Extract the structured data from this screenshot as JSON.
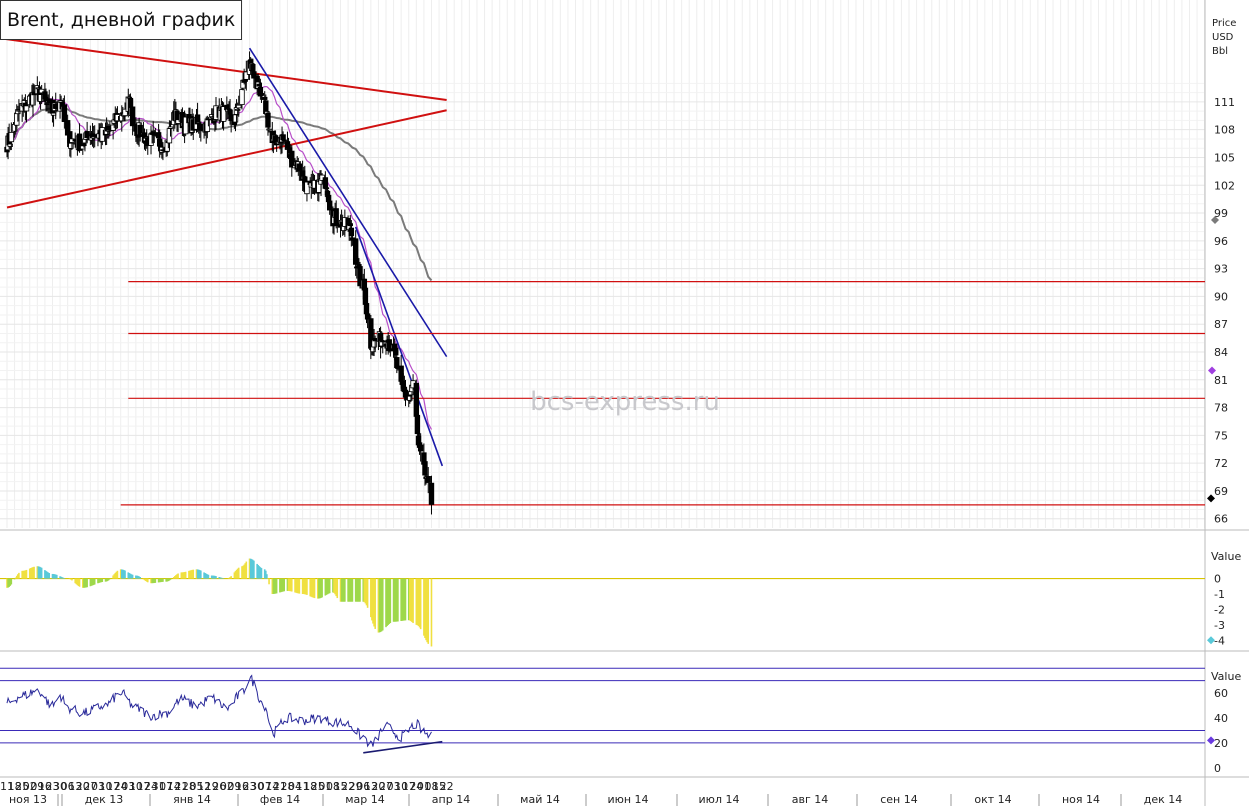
{
  "title": "Brent, дневной график",
  "watermark": "bcs-express.ru",
  "price_axis_unit": [
    "Price",
    "USD",
    "Bbl"
  ],
  "oscillator_axis_title": "Value",
  "rsi_axis_title": "Value",
  "colors": {
    "up": "#ffffff",
    "down": "#000000",
    "ma_short": "#b84fc9",
    "ma_long": "#7a7a7a",
    "trend_red": "#d01010",
    "trend_blue": "#1a1aa8",
    "hist_pos": "#f0e040",
    "hist_neg": "#9ed84a",
    "hist_edge_pos": "#59c9d9",
    "rsi_line": "#2a2a9a",
    "rsi_levels": "#3a2ab8",
    "zero_line": "#d8c400"
  },
  "chart_data": [
    {
      "type": "candlestick",
      "title": "Brent, дневной график",
      "ylabel": "Price USD Bbl",
      "ylim": [
        65,
        122
      ],
      "yticks": [
        66,
        69,
        72,
        75,
        78,
        81,
        84,
        87,
        90,
        93,
        96,
        99,
        102,
        105,
        108,
        111
      ],
      "x_day_labels": [
        "11",
        "18",
        "25",
        "02",
        "09",
        "16",
        "23",
        "30",
        "06",
        "13",
        "20",
        "27",
        "03",
        "10",
        "17",
        "24",
        "03",
        "10",
        "17",
        "24",
        "31",
        "07",
        "14",
        "21",
        "28",
        "05",
        "12",
        "19",
        "26",
        "02",
        "09",
        "16",
        "23",
        "30",
        "07",
        "14",
        "21",
        "28",
        "04",
        "11",
        "18",
        "25",
        "01",
        "08",
        "15",
        "22",
        "29",
        "06",
        "13",
        "20",
        "27",
        "03",
        "10",
        "17",
        "24",
        "01",
        "08",
        "15",
        "22"
      ],
      "x_month_labels": [
        "ноя 13",
        "дек 13",
        "янв 14",
        "фев 14",
        "мар 14",
        "апр 14",
        "май 14",
        "июн 14",
        "июл 14",
        "авг 14",
        "сен 14",
        "окт 14",
        "ноя 14",
        "дек 14"
      ],
      "close_waypoints": [
        [
          "2013-11-11",
          106.5
        ],
        [
          "2013-11-25",
          110.5
        ],
        [
          "2013-12-09",
          112.0
        ],
        [
          "2013-12-23",
          110.0
        ],
        [
          "2013-12-30",
          111.5
        ],
        [
          "2014-01-06",
          107.0
        ],
        [
          "2014-01-20",
          106.5
        ],
        [
          "2014-01-27",
          107.5
        ],
        [
          "2014-02-10",
          107.5
        ],
        [
          "2014-02-24",
          109.5
        ],
        [
          "2014-03-03",
          111.0
        ],
        [
          "2014-03-10",
          108.0
        ],
        [
          "2014-03-24",
          106.8
        ],
        [
          "2014-04-07",
          106.5
        ],
        [
          "2014-04-14",
          109.5
        ],
        [
          "2014-04-28",
          108.5
        ],
        [
          "2014-05-12",
          108.5
        ],
        [
          "2014-05-26",
          110.0
        ],
        [
          "2014-06-09",
          109.0
        ],
        [
          "2014-06-16",
          112.5
        ],
        [
          "2014-06-23",
          115.0
        ],
        [
          "2014-07-07",
          110.5
        ],
        [
          "2014-07-14",
          106.5
        ],
        [
          "2014-07-21",
          107.2
        ],
        [
          "2014-08-04",
          104.5
        ],
        [
          "2014-08-18",
          101.5
        ],
        [
          "2014-09-01",
          102.5
        ],
        [
          "2014-09-08",
          98.5
        ],
        [
          "2014-09-22",
          97.5
        ],
        [
          "2014-10-06",
          91.0
        ],
        [
          "2014-10-13",
          85.0
        ],
        [
          "2014-10-27",
          85.5
        ],
        [
          "2014-11-03",
          84.0
        ],
        [
          "2014-11-10",
          80.0
        ],
        [
          "2014-11-17",
          79.0
        ],
        [
          "2014-11-21",
          80.5
        ],
        [
          "2014-11-27",
          73.0
        ],
        [
          "2014-12-01",
          71.0
        ],
        [
          "2014-12-08",
          67.8
        ]
      ],
      "overlays": [
        {
          "name": "MA short",
          "color": "ma_short"
        },
        {
          "name": "MA long",
          "color": "ma_long",
          "last_value": 96.9
        },
        {
          "kind": "trendline",
          "color": "trend_red",
          "from": [
            "2013-10-28",
            118.0
          ],
          "to": [
            "2014-12-22",
            111.2
          ]
        },
        {
          "kind": "trendline",
          "color": "trend_red",
          "from": [
            "2013-11-11",
            99.6
          ],
          "to": [
            "2014-12-22",
            110.1
          ]
        },
        {
          "kind": "trendline",
          "color": "trend_blue",
          "from": [
            "2014-06-23",
            116.8
          ],
          "to": [
            "2014-12-22",
            83.5
          ]
        },
        {
          "kind": "trendline",
          "color": "trend_blue",
          "from": [
            "2014-09-29",
            97.5
          ],
          "to": [
            "2014-12-18",
            71.7
          ]
        },
        {
          "kind": "level",
          "color": "trend_red",
          "value": 91.6,
          "from": "2014-03-03"
        },
        {
          "kind": "level",
          "color": "trend_red",
          "value": 86.0,
          "from": "2014-03-03"
        },
        {
          "kind": "level",
          "color": "trend_red",
          "value": 79.0,
          "from": "2014-03-03"
        },
        {
          "kind": "level",
          "color": "trend_red",
          "value": 67.5,
          "from": "2014-02-24"
        }
      ],
      "last_marker_value": 68.2
    },
    {
      "type": "histogram",
      "ylabel": "Value",
      "ylim": [
        -4.5,
        2.5
      ],
      "yticks": [
        0,
        -1,
        -2,
        -3,
        -4
      ],
      "values_waypoints": [
        [
          "2013-11-11",
          -0.6
        ],
        [
          "2013-11-25",
          0.5
        ],
        [
          "2013-12-09",
          0.8
        ],
        [
          "2013-12-23",
          0.3
        ],
        [
          "2014-01-06",
          0.0
        ],
        [
          "2014-01-20",
          -0.6
        ],
        [
          "2014-02-10",
          -0.2
        ],
        [
          "2014-02-24",
          0.6
        ],
        [
          "2014-03-10",
          0.2
        ],
        [
          "2014-03-24",
          -0.3
        ],
        [
          "2014-04-07",
          -0.2
        ],
        [
          "2014-04-21",
          0.4
        ],
        [
          "2014-05-05",
          0.6
        ],
        [
          "2014-05-19",
          0.2
        ],
        [
          "2014-06-02",
          0.0
        ],
        [
          "2014-06-16",
          0.8
        ],
        [
          "2014-06-23",
          1.3
        ],
        [
          "2014-07-07",
          0.6
        ],
        [
          "2014-07-14",
          -1.0
        ],
        [
          "2014-07-28",
          -0.8
        ],
        [
          "2014-08-11",
          -1.0
        ],
        [
          "2014-08-25",
          -1.3
        ],
        [
          "2014-09-08",
          -0.9
        ],
        [
          "2014-09-15",
          -1.5
        ],
        [
          "2014-10-06",
          -1.5
        ],
        [
          "2014-10-20",
          -3.5
        ],
        [
          "2014-11-03",
          -2.8
        ],
        [
          "2014-11-17",
          -2.7
        ],
        [
          "2014-11-24",
          -3.0
        ],
        [
          "2014-12-08",
          -4.4
        ]
      ],
      "last_marker_value": -4
    },
    {
      "type": "line",
      "ylabel": "Value",
      "ylim": [
        -5,
        85
      ],
      "yticks": [
        0,
        20,
        40,
        60
      ],
      "levels": [
        20,
        30,
        70,
        80
      ],
      "values_waypoints": [
        [
          "2013-11-11",
          52
        ],
        [
          "2013-11-25",
          58
        ],
        [
          "2013-12-09",
          62
        ],
        [
          "2013-12-23",
          50
        ],
        [
          "2013-12-30",
          58
        ],
        [
          "2014-01-06",
          48
        ],
        [
          "2014-01-20",
          44
        ],
        [
          "2014-02-10",
          50
        ],
        [
          "2014-02-24",
          60
        ],
        [
          "2014-03-10",
          48
        ],
        [
          "2014-03-24",
          42
        ],
        [
          "2014-04-07",
          44
        ],
        [
          "2014-04-21",
          55
        ],
        [
          "2014-05-05",
          50
        ],
        [
          "2014-05-19",
          56
        ],
        [
          "2014-06-02",
          48
        ],
        [
          "2014-06-16",
          60
        ],
        [
          "2014-06-23",
          72
        ],
        [
          "2014-07-07",
          50
        ],
        [
          "2014-07-14",
          28
        ],
        [
          "2014-07-28",
          40
        ],
        [
          "2014-08-11",
          38
        ],
        [
          "2014-08-25",
          40
        ],
        [
          "2014-09-08",
          37
        ],
        [
          "2014-09-22",
          35
        ],
        [
          "2014-10-06",
          25
        ],
        [
          "2014-10-13",
          18
        ],
        [
          "2014-10-27",
          33
        ],
        [
          "2014-11-10",
          25
        ],
        [
          "2014-11-24",
          35
        ],
        [
          "2014-12-01",
          28
        ],
        [
          "2014-12-08",
          25
        ]
      ],
      "trendline": {
        "from": [
          "2014-10-06",
          12
        ],
        "to": [
          "2014-12-18",
          21
        ]
      },
      "last_marker_value": 22
    }
  ]
}
